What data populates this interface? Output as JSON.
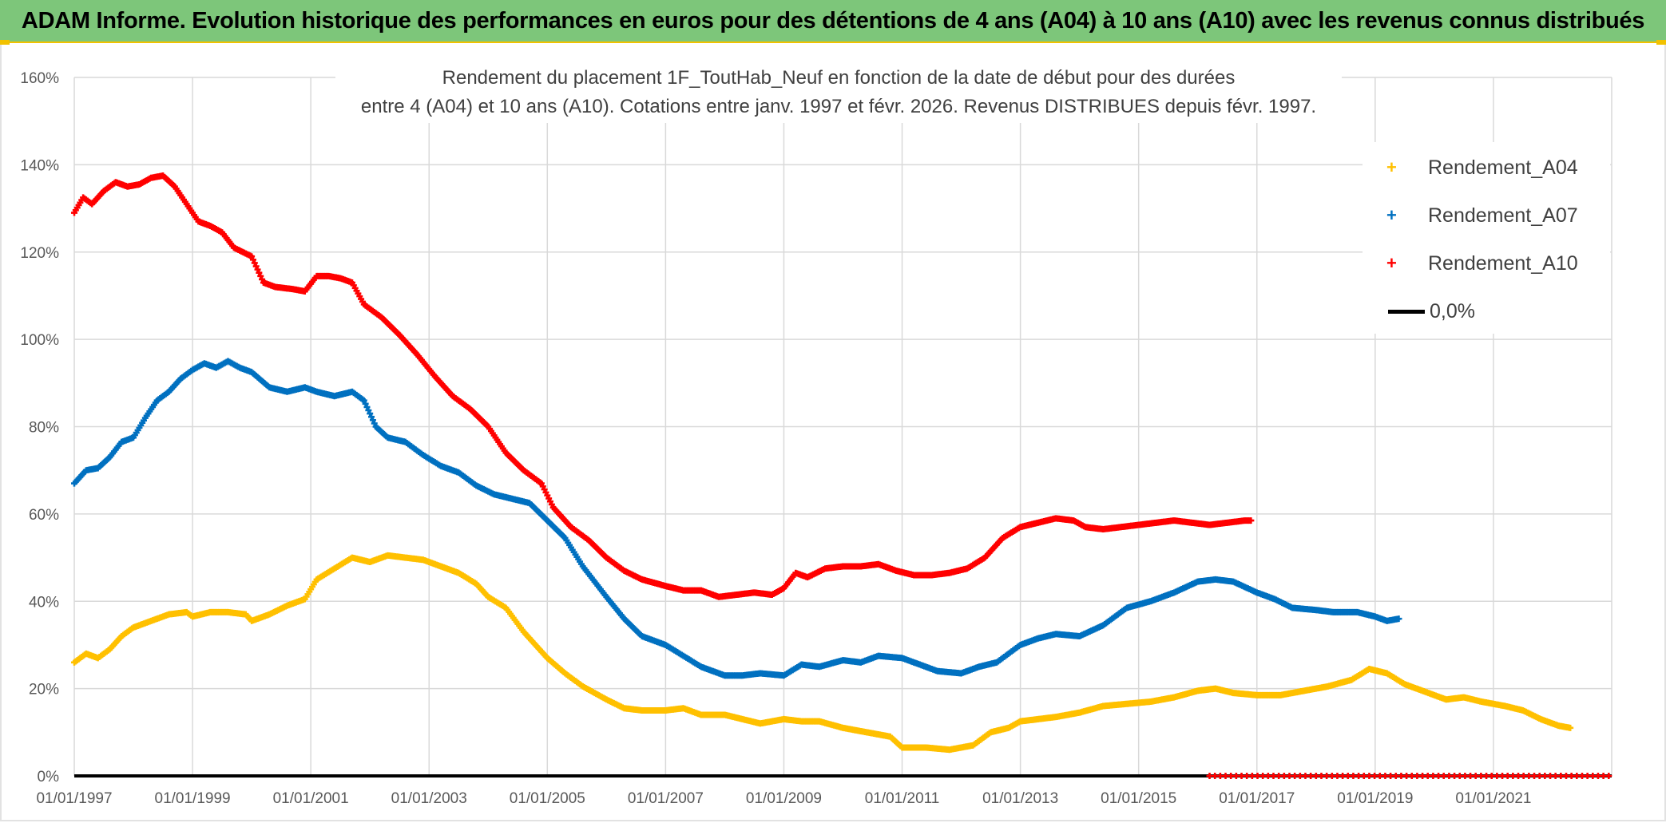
{
  "header": {
    "title": "ADAM Informe. Evolution historique des performances en euros pour des détentions de 4 ans (A04) à 10 ans (A10) avec les revenus connus distribués"
  },
  "colors": {
    "title_bg": "#7dc67a",
    "accent_line": "#f2c200",
    "A04": "#ffc000",
    "A07": "#0070c0",
    "A10": "#ff0000",
    "zero": "#000000"
  },
  "chart_data": {
    "type": "scatter",
    "title_line1": "Rendement du placement 1F_ToutHab_Neuf en fonction de la date de début pour des durées",
    "title_line2": "entre 4 (A04) et 10 ans (A10). Cotations entre janv. 1997 et févr. 2026. Revenus DISTRIBUES depuis févr. 1997.",
    "xlabel": "",
    "ylabel": "",
    "xlim": [
      1997.0,
      2023.0
    ],
    "ylim": [
      0,
      160
    ],
    "x_ticks": [
      1997,
      1999,
      2001,
      2003,
      2005,
      2007,
      2009,
      2011,
      2013,
      2015,
      2017,
      2019,
      2021
    ],
    "x_tick_labels": [
      "01/01/1997",
      "01/01/1999",
      "01/01/2001",
      "01/01/2003",
      "01/01/2005",
      "01/01/2007",
      "01/01/2009",
      "01/01/2011",
      "01/01/2013",
      "01/01/2015",
      "01/01/2017",
      "01/01/2019",
      "01/01/2021"
    ],
    "y_ticks": [
      0,
      20,
      40,
      60,
      80,
      100,
      120,
      140,
      160
    ],
    "y_tick_labels": [
      "0%",
      "20%",
      "40%",
      "60%",
      "80%",
      "100%",
      "120%",
      "140%",
      "160%"
    ],
    "grid": true,
    "legend_position": "right",
    "series": [
      {
        "name": "Rendement_A04",
        "color": "#ffc000",
        "points": [
          [
            1997.0,
            26
          ],
          [
            1997.2,
            28
          ],
          [
            1997.4,
            27
          ],
          [
            1997.6,
            29
          ],
          [
            1997.8,
            32
          ],
          [
            1998.0,
            34
          ],
          [
            1998.3,
            35.5
          ],
          [
            1998.6,
            37
          ],
          [
            1998.9,
            37.5
          ],
          [
            1999.0,
            36.5
          ],
          [
            1999.3,
            37.5
          ],
          [
            1999.6,
            37.5
          ],
          [
            1999.9,
            37
          ],
          [
            2000.0,
            35.5
          ],
          [
            2000.3,
            37
          ],
          [
            2000.6,
            39
          ],
          [
            2000.9,
            40.5
          ],
          [
            2001.1,
            45
          ],
          [
            2001.4,
            47.5
          ],
          [
            2001.7,
            50
          ],
          [
            2002.0,
            49
          ],
          [
            2002.3,
            50.5
          ],
          [
            2002.6,
            50
          ],
          [
            2002.9,
            49.5
          ],
          [
            2003.2,
            48
          ],
          [
            2003.5,
            46.5
          ],
          [
            2003.8,
            44
          ],
          [
            2004.0,
            41
          ],
          [
            2004.3,
            38.5
          ],
          [
            2004.6,
            33
          ],
          [
            2005.0,
            27
          ],
          [
            2005.3,
            23.5
          ],
          [
            2005.6,
            20.5
          ],
          [
            2006.0,
            17.5
          ],
          [
            2006.3,
            15.5
          ],
          [
            2006.6,
            15
          ],
          [
            2007.0,
            15
          ],
          [
            2007.3,
            15.5
          ],
          [
            2007.6,
            14
          ],
          [
            2008.0,
            14
          ],
          [
            2008.3,
            13
          ],
          [
            2008.6,
            12
          ],
          [
            2009.0,
            13
          ],
          [
            2009.3,
            12.5
          ],
          [
            2009.6,
            12.5
          ],
          [
            2010.0,
            11
          ],
          [
            2010.4,
            10
          ],
          [
            2010.8,
            9
          ],
          [
            2011.0,
            6.5
          ],
          [
            2011.4,
            6.5
          ],
          [
            2011.8,
            6
          ],
          [
            2012.2,
            7
          ],
          [
            2012.5,
            10
          ],
          [
            2012.8,
            11
          ],
          [
            2013.0,
            12.5
          ],
          [
            2013.3,
            13
          ],
          [
            2013.6,
            13.5
          ],
          [
            2014.0,
            14.5
          ],
          [
            2014.4,
            16
          ],
          [
            2014.8,
            16.5
          ],
          [
            2015.2,
            17
          ],
          [
            2015.6,
            18
          ],
          [
            2016.0,
            19.5
          ],
          [
            2016.3,
            20
          ],
          [
            2016.6,
            19
          ],
          [
            2017.0,
            18.5
          ],
          [
            2017.4,
            18.5
          ],
          [
            2017.8,
            19.5
          ],
          [
            2018.2,
            20.5
          ],
          [
            2018.6,
            22
          ],
          [
            2018.9,
            24.5
          ],
          [
            2019.2,
            23.5
          ],
          [
            2019.5,
            21
          ],
          [
            2019.8,
            19.5
          ],
          [
            2020.2,
            17.5
          ],
          [
            2020.5,
            18
          ],
          [
            2020.8,
            17
          ],
          [
            2021.2,
            16
          ],
          [
            2021.5,
            15
          ],
          [
            2021.8,
            13
          ],
          [
            2022.1,
            11.5
          ],
          [
            2022.3,
            11
          ]
        ]
      },
      {
        "name": "Rendement_A07",
        "color": "#0070c0",
        "points": [
          [
            1997.0,
            67
          ],
          [
            1997.2,
            70
          ],
          [
            1997.4,
            70.5
          ],
          [
            1997.6,
            73
          ],
          [
            1997.8,
            76.5
          ],
          [
            1998.0,
            77.5
          ],
          [
            1998.2,
            82
          ],
          [
            1998.4,
            86
          ],
          [
            1998.6,
            88
          ],
          [
            1998.8,
            91
          ],
          [
            1999.0,
            93
          ],
          [
            1999.2,
            94.5
          ],
          [
            1999.4,
            93.5
          ],
          [
            1999.6,
            95
          ],
          [
            1999.8,
            93.5
          ],
          [
            2000.0,
            92.5
          ],
          [
            2000.3,
            89
          ],
          [
            2000.6,
            88
          ],
          [
            2000.9,
            89
          ],
          [
            2001.1,
            88
          ],
          [
            2001.4,
            87
          ],
          [
            2001.7,
            88
          ],
          [
            2001.9,
            86
          ],
          [
            2002.1,
            80
          ],
          [
            2002.3,
            77.5
          ],
          [
            2002.6,
            76.5
          ],
          [
            2002.9,
            73.5
          ],
          [
            2003.2,
            71
          ],
          [
            2003.5,
            69.5
          ],
          [
            2003.8,
            66.5
          ],
          [
            2004.1,
            64.5
          ],
          [
            2004.4,
            63.5
          ],
          [
            2004.7,
            62.5
          ],
          [
            2005.0,
            58.5
          ],
          [
            2005.3,
            54.5
          ],
          [
            2005.6,
            48
          ],
          [
            2006.0,
            41
          ],
          [
            2006.3,
            36
          ],
          [
            2006.6,
            32
          ],
          [
            2007.0,
            30
          ],
          [
            2007.3,
            27.5
          ],
          [
            2007.6,
            25
          ],
          [
            2008.0,
            23
          ],
          [
            2008.3,
            23
          ],
          [
            2008.6,
            23.5
          ],
          [
            2009.0,
            23
          ],
          [
            2009.3,
            25.5
          ],
          [
            2009.6,
            25
          ],
          [
            2010.0,
            26.5
          ],
          [
            2010.3,
            26
          ],
          [
            2010.6,
            27.5
          ],
          [
            2011.0,
            27
          ],
          [
            2011.3,
            25.5
          ],
          [
            2011.6,
            24
          ],
          [
            2012.0,
            23.5
          ],
          [
            2012.3,
            25
          ],
          [
            2012.6,
            26
          ],
          [
            2013.0,
            30
          ],
          [
            2013.3,
            31.5
          ],
          [
            2013.6,
            32.5
          ],
          [
            2014.0,
            32
          ],
          [
            2014.4,
            34.5
          ],
          [
            2014.8,
            38.5
          ],
          [
            2015.2,
            40
          ],
          [
            2015.6,
            42
          ],
          [
            2016.0,
            44.5
          ],
          [
            2016.3,
            45
          ],
          [
            2016.6,
            44.5
          ],
          [
            2017.0,
            42
          ],
          [
            2017.3,
            40.5
          ],
          [
            2017.6,
            38.5
          ],
          [
            2018.0,
            38
          ],
          [
            2018.3,
            37.5
          ],
          [
            2018.7,
            37.5
          ],
          [
            2019.0,
            36.5
          ],
          [
            2019.2,
            35.5
          ],
          [
            2019.4,
            36
          ]
        ]
      },
      {
        "name": "Rendement_A10",
        "color": "#ff0000",
        "points": [
          [
            1997.0,
            129
          ],
          [
            1997.15,
            132.5
          ],
          [
            1997.3,
            131
          ],
          [
            1997.5,
            134
          ],
          [
            1997.7,
            136
          ],
          [
            1997.9,
            135
          ],
          [
            1998.1,
            135.5
          ],
          [
            1998.3,
            137
          ],
          [
            1998.5,
            137.5
          ],
          [
            1998.7,
            135
          ],
          [
            1998.9,
            131
          ],
          [
            1999.1,
            127
          ],
          [
            1999.3,
            126
          ],
          [
            1999.5,
            124.5
          ],
          [
            1999.7,
            121
          ],
          [
            2000.0,
            119
          ],
          [
            2000.2,
            113
          ],
          [
            2000.4,
            112
          ],
          [
            2000.7,
            111.5
          ],
          [
            2000.9,
            111
          ],
          [
            2001.1,
            114.5
          ],
          [
            2001.3,
            114.5
          ],
          [
            2001.5,
            114
          ],
          [
            2001.7,
            113
          ],
          [
            2001.9,
            108
          ],
          [
            2002.2,
            105
          ],
          [
            2002.5,
            101
          ],
          [
            2002.8,
            96.5
          ],
          [
            2003.1,
            91.5
          ],
          [
            2003.4,
            87
          ],
          [
            2003.7,
            84
          ],
          [
            2004.0,
            80
          ],
          [
            2004.3,
            74
          ],
          [
            2004.6,
            70
          ],
          [
            2004.9,
            67
          ],
          [
            2005.1,
            61.5
          ],
          [
            2005.4,
            57
          ],
          [
            2005.7,
            54
          ],
          [
            2006.0,
            50
          ],
          [
            2006.3,
            47
          ],
          [
            2006.6,
            45
          ],
          [
            2007.0,
            43.5
          ],
          [
            2007.3,
            42.5
          ],
          [
            2007.6,
            42.5
          ],
          [
            2007.9,
            41
          ],
          [
            2008.2,
            41.5
          ],
          [
            2008.5,
            42
          ],
          [
            2008.8,
            41.5
          ],
          [
            2009.0,
            43
          ],
          [
            2009.2,
            46.5
          ],
          [
            2009.4,
            45.5
          ],
          [
            2009.7,
            47.5
          ],
          [
            2010.0,
            48
          ],
          [
            2010.3,
            48
          ],
          [
            2010.6,
            48.5
          ],
          [
            2010.9,
            47
          ],
          [
            2011.2,
            46
          ],
          [
            2011.5,
            46
          ],
          [
            2011.8,
            46.5
          ],
          [
            2012.1,
            47.5
          ],
          [
            2012.4,
            50
          ],
          [
            2012.7,
            54.5
          ],
          [
            2013.0,
            57
          ],
          [
            2013.3,
            58
          ],
          [
            2013.6,
            59
          ],
          [
            2013.9,
            58.5
          ],
          [
            2014.1,
            57
          ],
          [
            2014.4,
            56.5
          ],
          [
            2014.7,
            57
          ],
          [
            2015.0,
            57.5
          ],
          [
            2015.3,
            58
          ],
          [
            2015.6,
            58.5
          ],
          [
            2015.9,
            58
          ],
          [
            2016.2,
            57.5
          ],
          [
            2016.5,
            58
          ],
          [
            2016.8,
            58.5
          ],
          [
            2016.9,
            58.5
          ]
        ]
      },
      {
        "name": "0,0%",
        "color": "#000000",
        "from": 1997.0,
        "to": 2023.0,
        "value": 0
      }
    ],
    "zero_markers_A10": {
      "from": 2016.2,
      "to": 2023.0,
      "value": 0
    }
  },
  "legend": {
    "items": [
      {
        "label": "Rendement_A04",
        "marker": "+"
      },
      {
        "label": "Rendement_A07",
        "marker": "+"
      },
      {
        "label": "Rendement_A10",
        "marker": "+"
      },
      {
        "label": "0,0%",
        "marker": "line"
      }
    ]
  }
}
